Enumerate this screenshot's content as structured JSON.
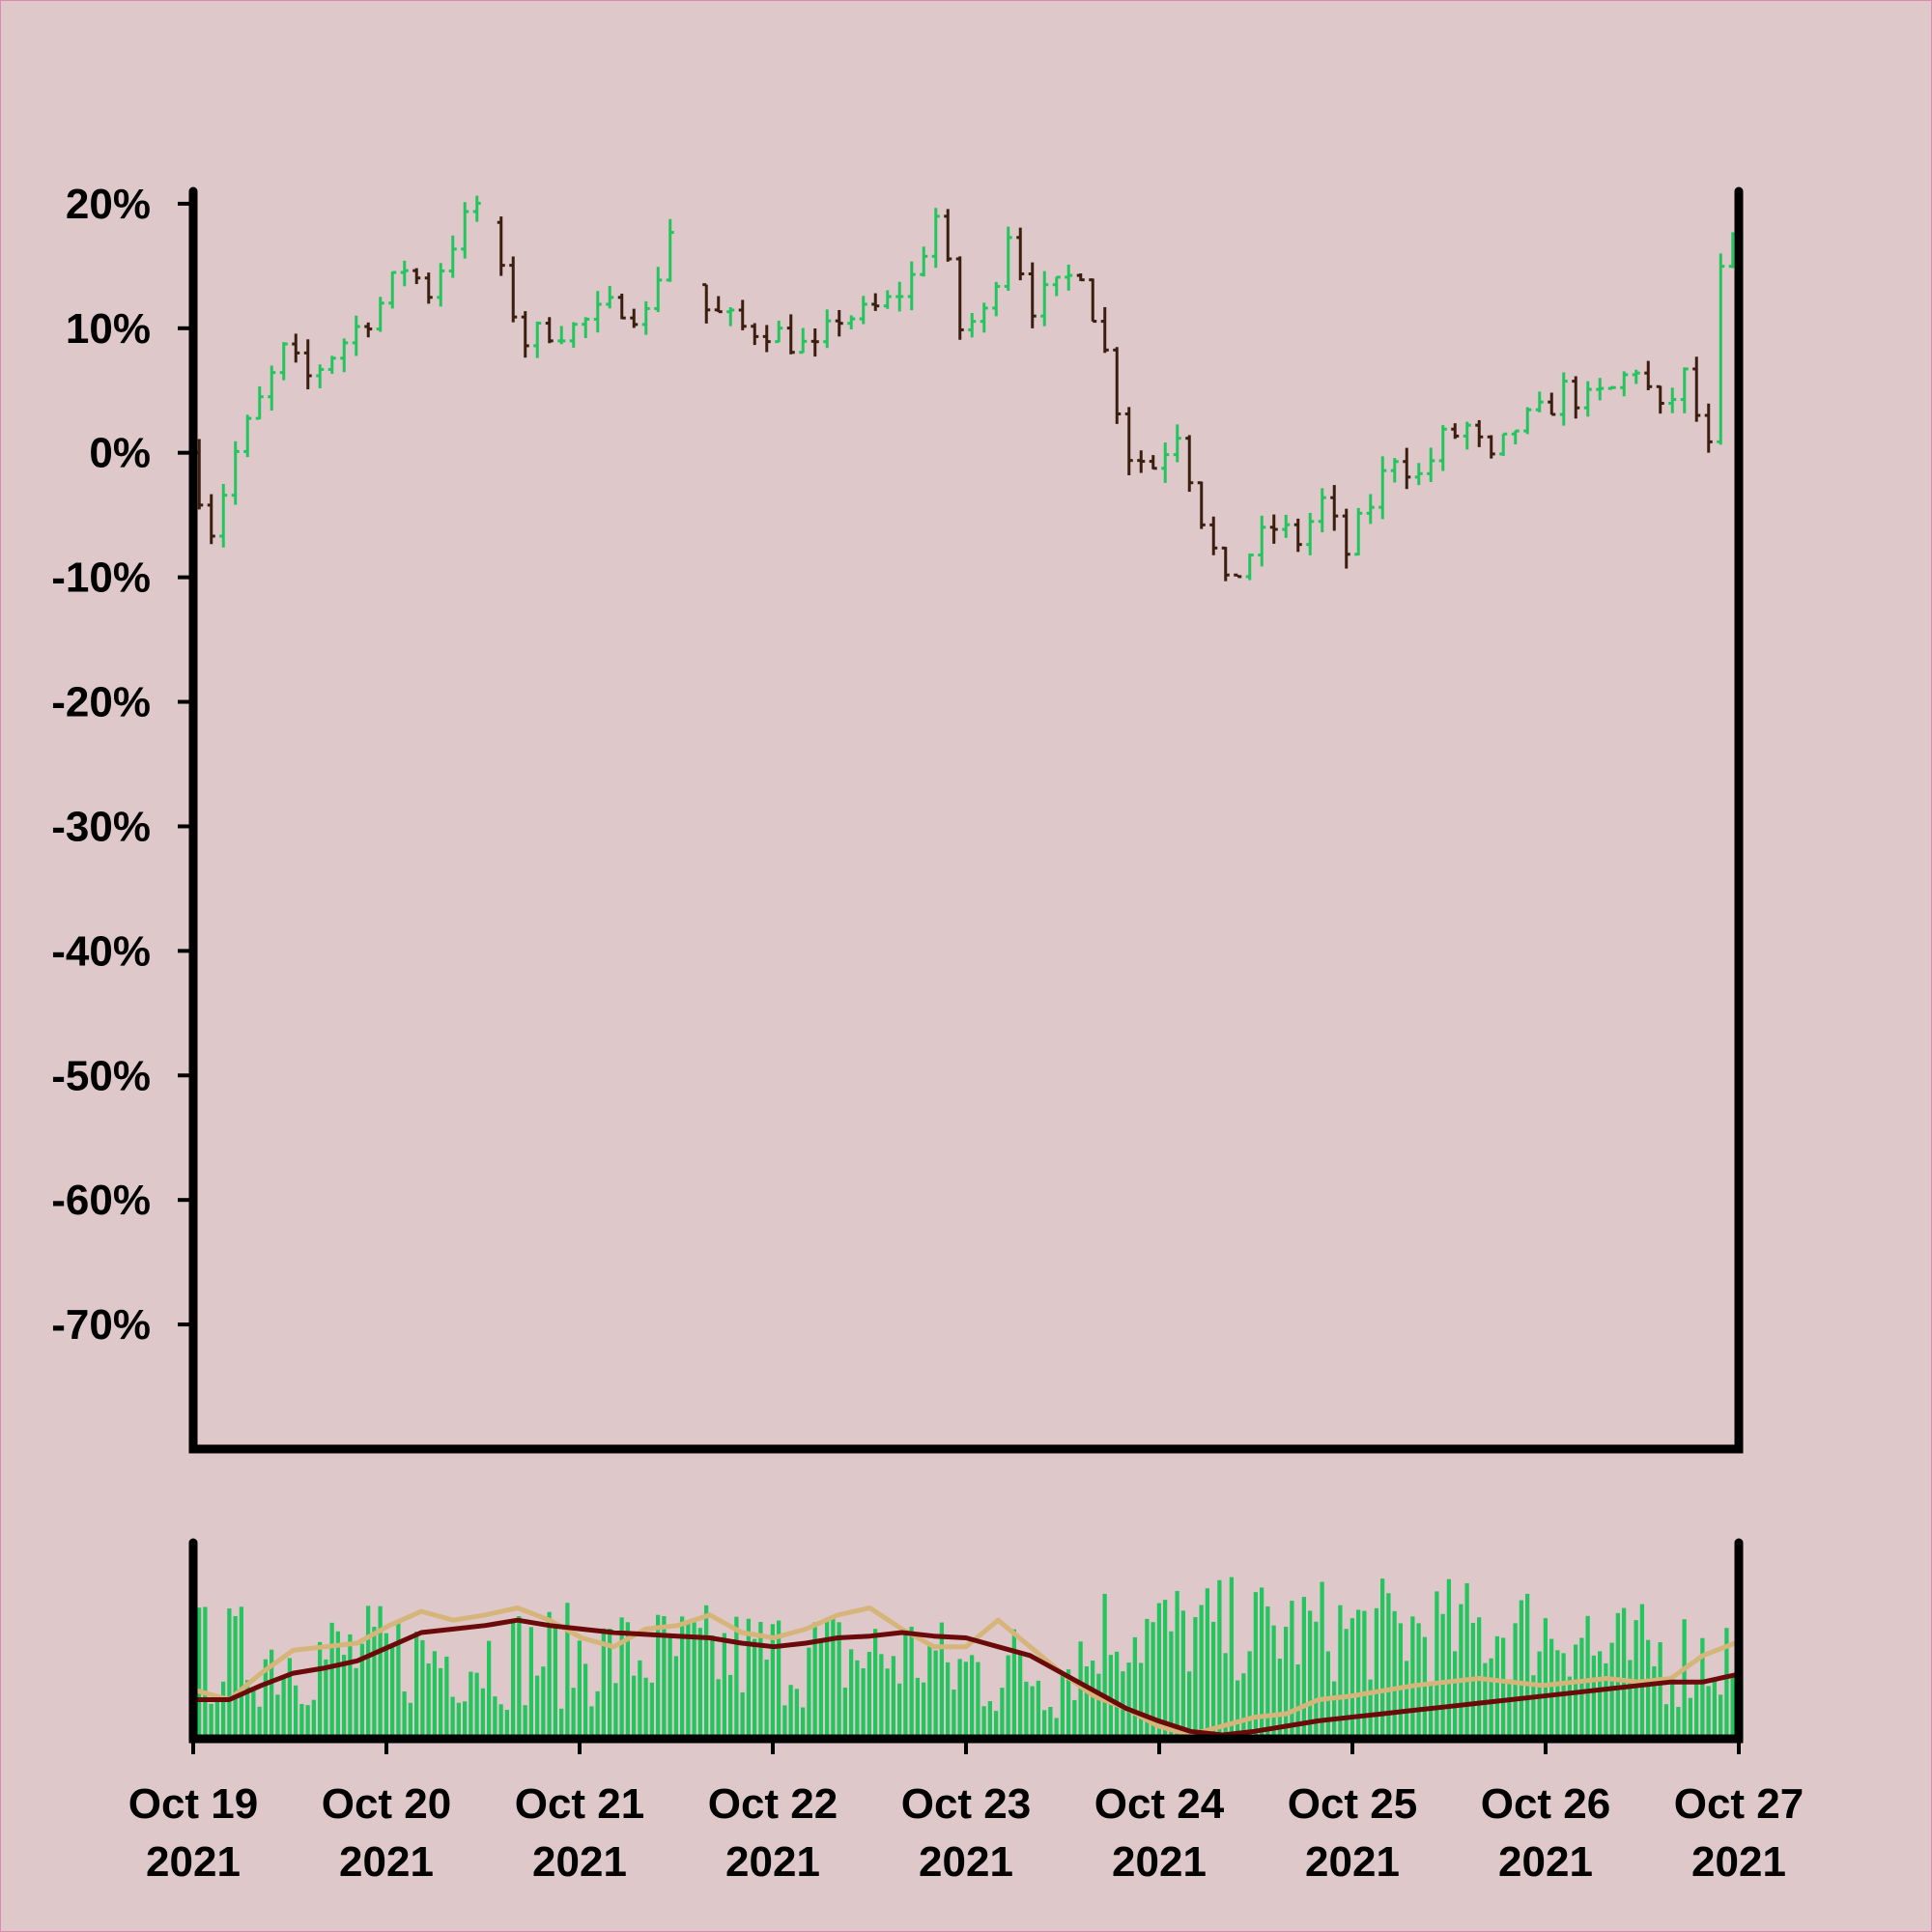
{
  "chart_data": [
    {
      "type": "ohlc",
      "panel": "price",
      "y_unit": "percent",
      "ylim": [
        -80,
        21
      ],
      "yticks": [
        20,
        10,
        0,
        -10,
        -20,
        -30,
        -40,
        -50,
        -60,
        -70
      ],
      "ytick_labels": [
        "20%",
        "10%",
        "0%",
        "-10%",
        "-20%",
        "-30%",
        "-40%",
        "-50%",
        "-60%",
        "-70%"
      ],
      "x_start": "2021-10-19",
      "x_end": "2021-10-27",
      "xtick_labels": [
        {
          "line1": "Oct 19",
          "line2": "2021"
        },
        {
          "line1": "Oct 20",
          "line2": "2021"
        },
        {
          "line1": "Oct 21",
          "line2": "2021"
        },
        {
          "line1": "Oct 22",
          "line2": "2021"
        },
        {
          "line1": "Oct 23",
          "line2": "2021"
        },
        {
          "line1": "Oct 24",
          "line2": "2021"
        },
        {
          "line1": "Oct 25",
          "line2": "2021"
        },
        {
          "line1": "Oct 26",
          "line2": "2021"
        },
        {
          "line1": "Oct 27",
          "line2": "2021"
        }
      ],
      "close_path": [
        [
          "2021-10-19T00:00",
          0
        ],
        [
          "2021-10-19T03:00",
          -6
        ],
        [
          "2021-10-19T06:00",
          0
        ],
        [
          "2021-10-19T09:00",
          4
        ],
        [
          "2021-10-19T12:00",
          8
        ],
        [
          "2021-10-19T15:00",
          6
        ],
        [
          "2021-10-19T18:00",
          8
        ],
        [
          "2021-10-19T21:00",
          10
        ],
        [
          "2021-10-20T00:00",
          12
        ],
        [
          "2021-10-20T03:00",
          15
        ],
        [
          "2021-10-20T06:00",
          13
        ],
        [
          "2021-10-20T09:00",
          17
        ],
        [
          "2021-10-20T12:00",
          20
        ],
        [
          "2021-10-20T15:00",
          14
        ],
        [
          "2021-10-20T18:00",
          9
        ],
        [
          "2021-10-20T21:00",
          10
        ],
        [
          "2021-10-21T00:00",
          10
        ],
        [
          "2021-10-21T03:00",
          11
        ],
        [
          "2021-10-21T06:00",
          12
        ],
        [
          "2021-10-21T09:00",
          11
        ],
        [
          "2021-10-21T12:00",
          18
        ],
        [
          "2021-10-21T15:00",
          12
        ],
        [
          "2021-10-21T18:00",
          11
        ],
        [
          "2021-10-21T21:00",
          10
        ],
        [
          "2021-10-22T00:00",
          10
        ],
        [
          "2021-10-22T03:00",
          9
        ],
        [
          "2021-10-22T06:00",
          8
        ],
        [
          "2021-10-22T09:00",
          11
        ],
        [
          "2021-10-22T12:00",
          11
        ],
        [
          "2021-10-22T15:00",
          12
        ],
        [
          "2021-10-22T18:00",
          14
        ],
        [
          "2021-10-22T21:00",
          19
        ],
        [
          "2021-10-23T00:00",
          10
        ],
        [
          "2021-10-23T03:00",
          11
        ],
        [
          "2021-10-23T06:00",
          18
        ],
        [
          "2021-10-23T09:00",
          12
        ],
        [
          "2021-10-23T12:00",
          13
        ],
        [
          "2021-10-23T15:00",
          15
        ],
        [
          "2021-10-23T18:00",
          8
        ],
        [
          "2021-10-23T21:00",
          0
        ],
        [
          "2021-10-24T00:00",
          -1
        ],
        [
          "2021-10-24T03:00",
          2
        ],
        [
          "2021-10-24T06:00",
          -5
        ],
        [
          "2021-10-24T09:00",
          -11
        ],
        [
          "2021-10-24T12:00",
          -8
        ],
        [
          "2021-10-24T15:00",
          -6
        ],
        [
          "2021-10-24T18:00",
          -7
        ],
        [
          "2021-10-24T21:00",
          -4
        ],
        [
          "2021-10-25T00:00",
          -8
        ],
        [
          "2021-10-25T03:00",
          -4
        ],
        [
          "2021-10-25T06:00",
          0
        ],
        [
          "2021-10-25T09:00",
          -2
        ],
        [
          "2021-10-25T12:00",
          1
        ],
        [
          "2021-10-25T15:00",
          2
        ],
        [
          "2021-10-25T18:00",
          -1
        ],
        [
          "2021-10-25T21:00",
          2
        ],
        [
          "2021-10-26T00:00",
          3
        ],
        [
          "2021-10-26T03:00",
          5
        ],
        [
          "2021-10-26T06:00",
          4
        ],
        [
          "2021-10-26T09:00",
          5
        ],
        [
          "2021-10-26T12:00",
          7
        ],
        [
          "2021-10-26T15:00",
          3
        ],
        [
          "2021-10-26T18:00",
          6
        ],
        [
          "2021-10-26T21:00",
          0
        ],
        [
          "2021-10-26T22:30",
          14
        ],
        [
          "2021-10-27T00:00",
          17
        ]
      ],
      "gaps": [
        [
          "2021-10-20T11:30",
          "2021-10-20T13:00"
        ],
        [
          "2021-10-21T12:30",
          "2021-10-21T15:00"
        ]
      ],
      "bars_per_day": 16,
      "up_color": "#22c55e",
      "down_color": "#3b1e0f"
    },
    {
      "type": "bar",
      "panel": "volume",
      "bar_color": "#22c55e",
      "moving_averages": [
        {
          "color": "#d6b57a",
          "values": [
            0.25,
            0.2,
            0.35,
            0.48,
            0.5,
            0.52,
            0.62,
            0.7,
            0.65,
            0.68,
            0.72,
            0.65,
            0.55,
            0.5,
            0.6,
            0.62,
            0.68,
            0.58,
            0.55,
            0.6,
            0.68,
            0.72,
            0.6,
            0.5,
            0.5,
            0.65,
            0.5,
            0.35,
            0.22,
            0.15,
            0.05,
            -0.05,
            0.05,
            0.1,
            0.12,
            0.2,
            0.22,
            0.25,
            0.28,
            0.3,
            0.32,
            0.3,
            0.28,
            0.3,
            0.32,
            0.3,
            0.32,
            0.45,
            0.52
          ]
        },
        {
          "color": "#6b0a0a",
          "values": [
            0.2,
            0.2,
            0.28,
            0.35,
            0.38,
            0.42,
            0.5,
            0.58,
            0.6,
            0.62,
            0.65,
            0.62,
            0.6,
            0.58,
            0.57,
            0.56,
            0.55,
            0.52,
            0.5,
            0.52,
            0.55,
            0.56,
            0.58,
            0.56,
            0.55,
            0.5,
            0.45,
            0.35,
            0.25,
            0.15,
            0.08,
            0.02,
            -0.02,
            0.02,
            0.05,
            0.08,
            0.1,
            0.12,
            0.14,
            0.16,
            0.18,
            0.2,
            0.22,
            0.24,
            0.26,
            0.28,
            0.3,
            0.3,
            0.34
          ]
        }
      ]
    }
  ]
}
